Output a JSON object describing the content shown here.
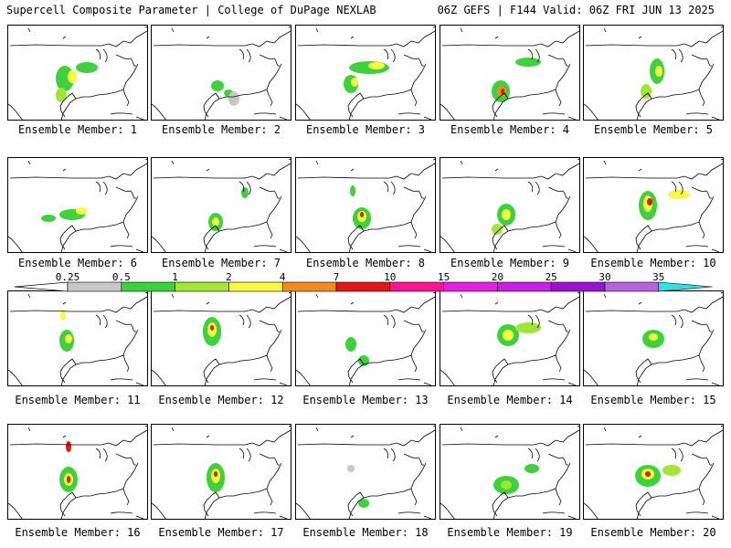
{
  "header": {
    "left": "Supercell Composite Parameter | College of DuPage NEXLAB",
    "right": "06Z GEFS | F144 Valid: 06Z FRI JUN 13 2025"
  },
  "legend": {
    "labels": [
      "0.25",
      "0.5",
      "1",
      "2",
      "4",
      "7",
      "10",
      "15",
      "20",
      "25",
      "30",
      "35"
    ],
    "colors": [
      "#c8c8c8",
      "#3cd23c",
      "#a0e632",
      "#fafa3c",
      "#f08c1e",
      "#e61414",
      "#ff1493",
      "#e61ee6",
      "#c81ee6",
      "#9614d2",
      "#b464dc",
      "#28e6e6"
    ]
  },
  "members": [
    {
      "caption": "Ensemble Member: 1"
    },
    {
      "caption": "Ensemble Member: 2"
    },
    {
      "caption": "Ensemble Member: 3"
    },
    {
      "caption": "Ensemble Member: 4"
    },
    {
      "caption": "Ensemble Member: 5"
    },
    {
      "caption": "Ensemble Member: 6"
    },
    {
      "caption": "Ensemble Member: 7"
    },
    {
      "caption": "Ensemble Member: 8"
    },
    {
      "caption": "Ensemble Member: 9"
    },
    {
      "caption": "Ensemble Member: 10"
    },
    {
      "caption": "Ensemble Member: 11"
    },
    {
      "caption": "Ensemble Member: 12"
    },
    {
      "caption": "Ensemble Member: 13"
    },
    {
      "caption": "Ensemble Member: 14"
    },
    {
      "caption": "Ensemble Member: 15"
    },
    {
      "caption": "Ensemble Member: 16"
    },
    {
      "caption": "Ensemble Member: 17"
    },
    {
      "caption": "Ensemble Member: 18"
    },
    {
      "caption": "Ensemble Member: 19"
    },
    {
      "caption": "Ensemble Member: 20"
    }
  ]
}
